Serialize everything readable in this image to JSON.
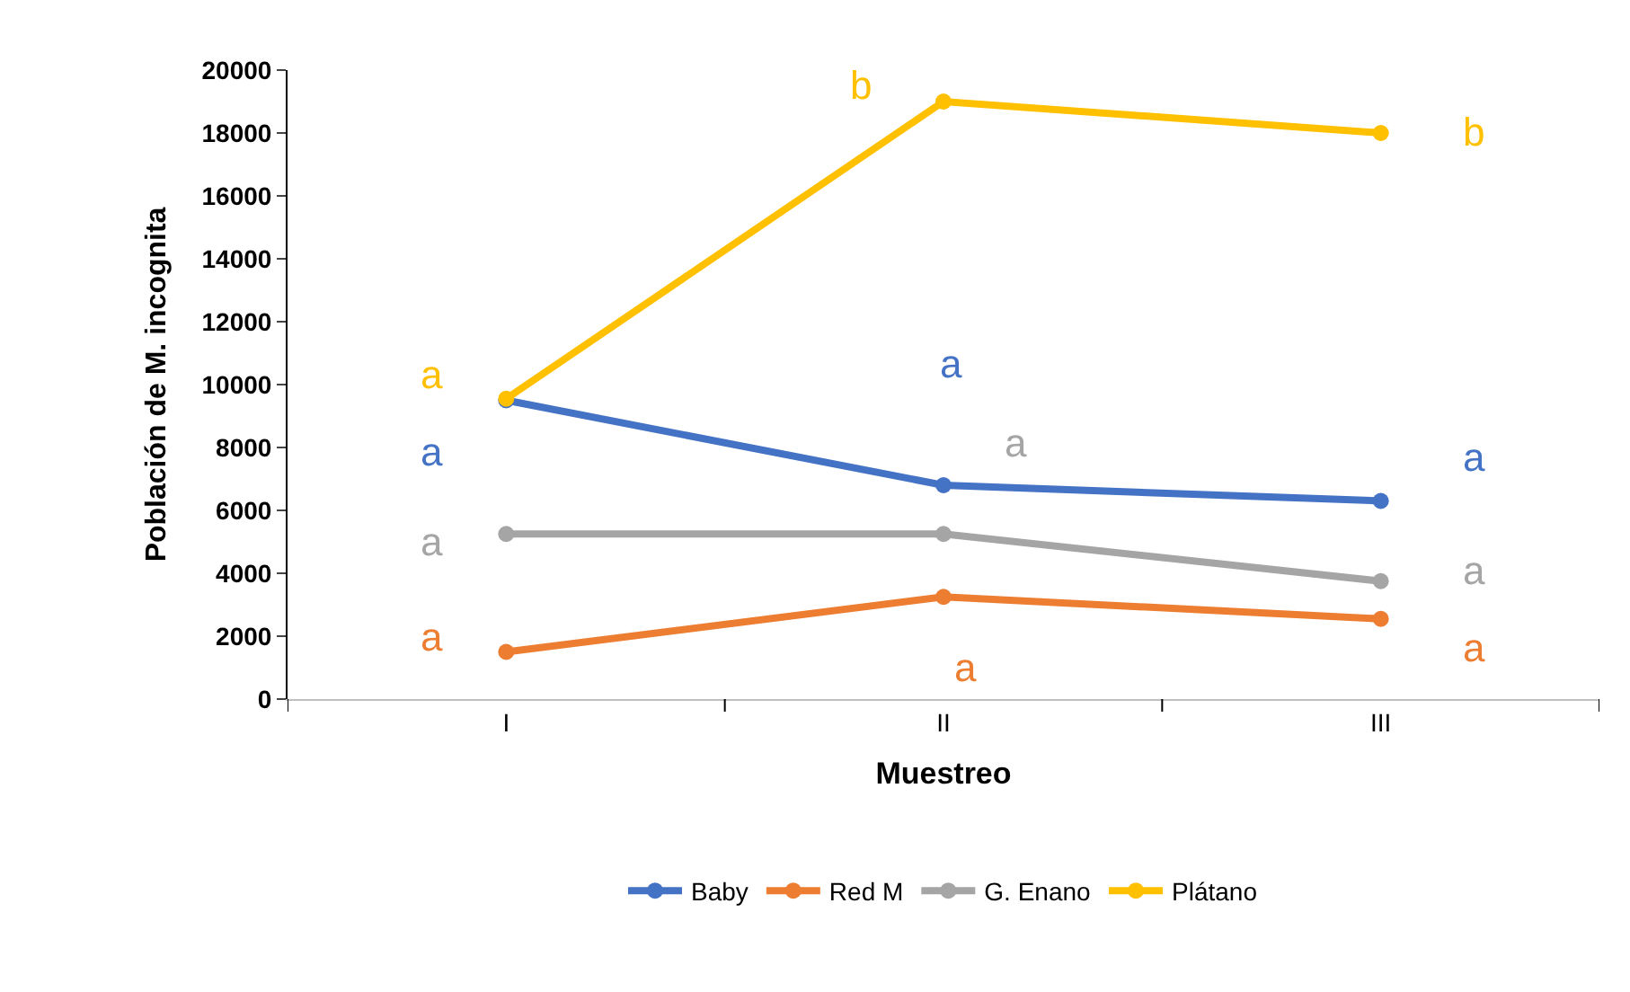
{
  "chart_data": {
    "type": "line",
    "xlabel": "Muestreo",
    "ylabel": "Población de M. incognita",
    "categories": [
      "I",
      "II",
      "III"
    ],
    "series": [
      {
        "name": "Baby",
        "color": "#4472c4",
        "values": [
          9500,
          6800,
          6300
        ],
        "value_labels": [
          "a",
          "a",
          "a"
        ]
      },
      {
        "name": "Red M",
        "color": "#ed7d31",
        "values": [
          1500,
          3250,
          2550
        ],
        "value_labels": [
          "a",
          "a",
          "a"
        ]
      },
      {
        "name": "G. Enano",
        "color": "#a5a5a5",
        "values": [
          5250,
          5250,
          3750
        ],
        "value_labels": [
          "a",
          "a",
          "a"
        ]
      },
      {
        "name": "Plátano",
        "color": "#ffc000",
        "values": [
          9550,
          19000,
          18000
        ],
        "value_labels": [
          "a",
          "b",
          "b"
        ]
      }
    ],
    "ylim": [
      0,
      20000
    ],
    "yticks": [
      0,
      2000,
      4000,
      6000,
      8000,
      10000,
      12000,
      14000,
      16000,
      18000,
      20000
    ],
    "legend": "bottom",
    "marker": "circle",
    "line_style": "solid"
  }
}
